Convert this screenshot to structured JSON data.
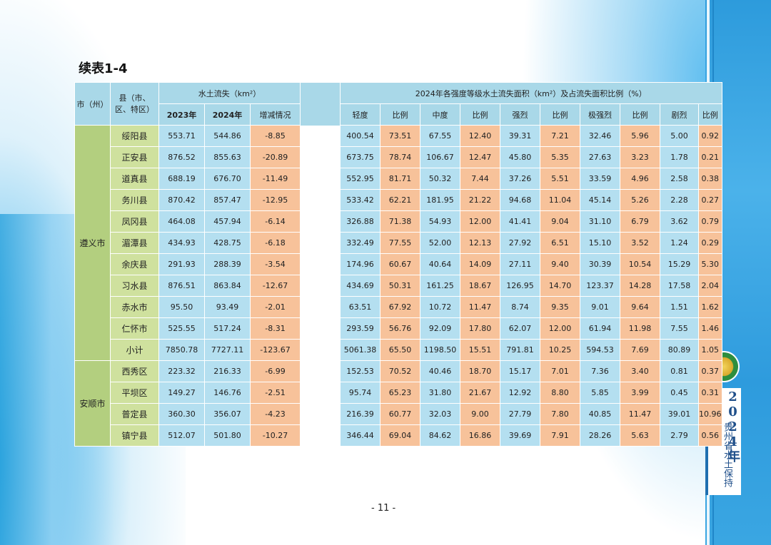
{
  "title": "续表1-4",
  "header": {
    "city": "市（州）",
    "county": "县（市、区、特区）",
    "soil_loss": "水土流失（km²）",
    "year_2023": "2023年",
    "year_2024": "2024年",
    "change": "增减情况",
    "intensity_group": "2024年各强度等级水土流失面积（km²）及占流失面积比例（%）",
    "light": "轻度",
    "moderate": "中度",
    "intense": "强烈",
    "very_intense": "极强烈",
    "severe": "剧烈",
    "ratio": "比例"
  },
  "groups": [
    {
      "city": "遵义市",
      "rows": [
        [
          "绥阳县",
          "553.71",
          "544.86",
          "-8.85",
          "400.54",
          "73.51",
          "67.55",
          "12.40",
          "39.31",
          "7.21",
          "32.46",
          "5.96",
          "5.00",
          "0.92"
        ],
        [
          "正安县",
          "876.52",
          "855.63",
          "-20.89",
          "673.75",
          "78.74",
          "106.67",
          "12.47",
          "45.80",
          "5.35",
          "27.63",
          "3.23",
          "1.78",
          "0.21"
        ],
        [
          "道真县",
          "688.19",
          "676.70",
          "-11.49",
          "552.95",
          "81.71",
          "50.32",
          "7.44",
          "37.26",
          "5.51",
          "33.59",
          "4.96",
          "2.58",
          "0.38"
        ],
        [
          "务川县",
          "870.42",
          "857.47",
          "-12.95",
          "533.42",
          "62.21",
          "181.95",
          "21.22",
          "94.68",
          "11.04",
          "45.14",
          "5.26",
          "2.28",
          "0.27"
        ],
        [
          "凤冈县",
          "464.08",
          "457.94",
          "-6.14",
          "326.88",
          "71.38",
          "54.93",
          "12.00",
          "41.41",
          "9.04",
          "31.10",
          "6.79",
          "3.62",
          "0.79"
        ],
        [
          "湄潭县",
          "434.93",
          "428.75",
          "-6.18",
          "332.49",
          "77.55",
          "52.00",
          "12.13",
          "27.92",
          "6.51",
          "15.10",
          "3.52",
          "1.24",
          "0.29"
        ],
        [
          "余庆县",
          "291.93",
          "288.39",
          "-3.54",
          "174.96",
          "60.67",
          "40.64",
          "14.09",
          "27.11",
          "9.40",
          "30.39",
          "10.54",
          "15.29",
          "5.30"
        ],
        [
          "习水县",
          "876.51",
          "863.84",
          "-12.67",
          "434.69",
          "50.31",
          "161.25",
          "18.67",
          "126.95",
          "14.70",
          "123.37",
          "14.28",
          "17.58",
          "2.04"
        ],
        [
          "赤水市",
          "95.50",
          "93.49",
          "-2.01",
          "63.51",
          "67.92",
          "10.72",
          "11.47",
          "8.74",
          "9.35",
          "9.01",
          "9.64",
          "1.51",
          "1.62"
        ],
        [
          "仁怀市",
          "525.55",
          "517.24",
          "-8.31",
          "293.59",
          "56.76",
          "92.09",
          "17.80",
          "62.07",
          "12.00",
          "61.94",
          "11.98",
          "7.55",
          "1.46"
        ]
      ],
      "subtotal": [
        "小计",
        "7850.78",
        "7727.11",
        "-123.67",
        "5061.38",
        "65.50",
        "1198.50",
        "15.51",
        "791.81",
        "10.25",
        "594.53",
        "7.69",
        "80.89",
        "1.05"
      ]
    },
    {
      "city": "安顺市",
      "rows": [
        [
          "西秀区",
          "223.32",
          "216.33",
          "-6.99",
          "152.53",
          "70.52",
          "40.46",
          "18.70",
          "15.17",
          "7.01",
          "7.36",
          "3.40",
          "0.81",
          "0.37"
        ],
        [
          "平坝区",
          "149.27",
          "146.76",
          "-2.51",
          "95.74",
          "65.23",
          "31.80",
          "21.67",
          "12.92",
          "8.80",
          "5.85",
          "3.99",
          "0.45",
          "0.31"
        ],
        [
          "普定县",
          "360.30",
          "356.07",
          "-4.23",
          "216.39",
          "60.77",
          "32.03",
          "9.00",
          "27.79",
          "7.80",
          "40.85",
          "11.47",
          "39.01",
          "10.96"
        ],
        [
          "镇宁县",
          "512.07",
          "501.80",
          "-10.27",
          "346.44",
          "69.04",
          "84.62",
          "16.86",
          "39.69",
          "7.91",
          "28.26",
          "5.63",
          "2.79",
          "0.56"
        ]
      ]
    }
  ],
  "sidebar": {
    "year": "2024年",
    "subtitle": "贵州省水土保持公报",
    "logo_icon": "soil-conservation-emblem-icon"
  },
  "page_number": "- 11 -",
  "colors": {
    "header_blue": "#a9d8e8",
    "cell_blue": "#b4dff0",
    "cell_orange": "#f7c29a",
    "city_green": "#b3cf7f",
    "county_green": "#cfe19e"
  }
}
